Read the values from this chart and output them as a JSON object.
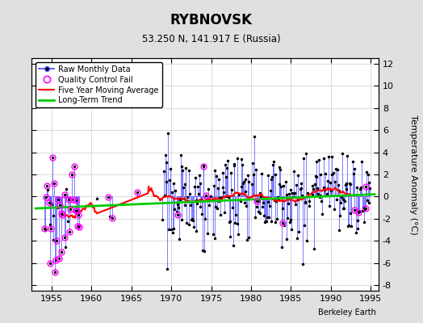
{
  "title": "RYBNOVSK",
  "subtitle": "53.250 N, 141.917 E (Russia)",
  "ylabel": "Temperature Anomaly (°C)",
  "xlim": [
    1952.5,
    1996
  ],
  "ylim": [
    -8.5,
    12.5
  ],
  "yticks": [
    -8,
    -6,
    -4,
    -2,
    0,
    2,
    4,
    6,
    8,
    10,
    12
  ],
  "xticks": [
    1955,
    1960,
    1965,
    1970,
    1975,
    1980,
    1985,
    1990,
    1995
  ],
  "background_color": "#e0e0e0",
  "plot_bg_color": "#ffffff",
  "raw_line_color": "#4444ff",
  "raw_marker_color": "#000000",
  "qc_fail_color": "#ff00ff",
  "moving_avg_color": "#ff0000",
  "trend_color": "#00cc00",
  "watermark": "Berkeley Earth",
  "trend_slope": 0.03,
  "trend_intercept": -0.5,
  "trend_x0": 1972
}
